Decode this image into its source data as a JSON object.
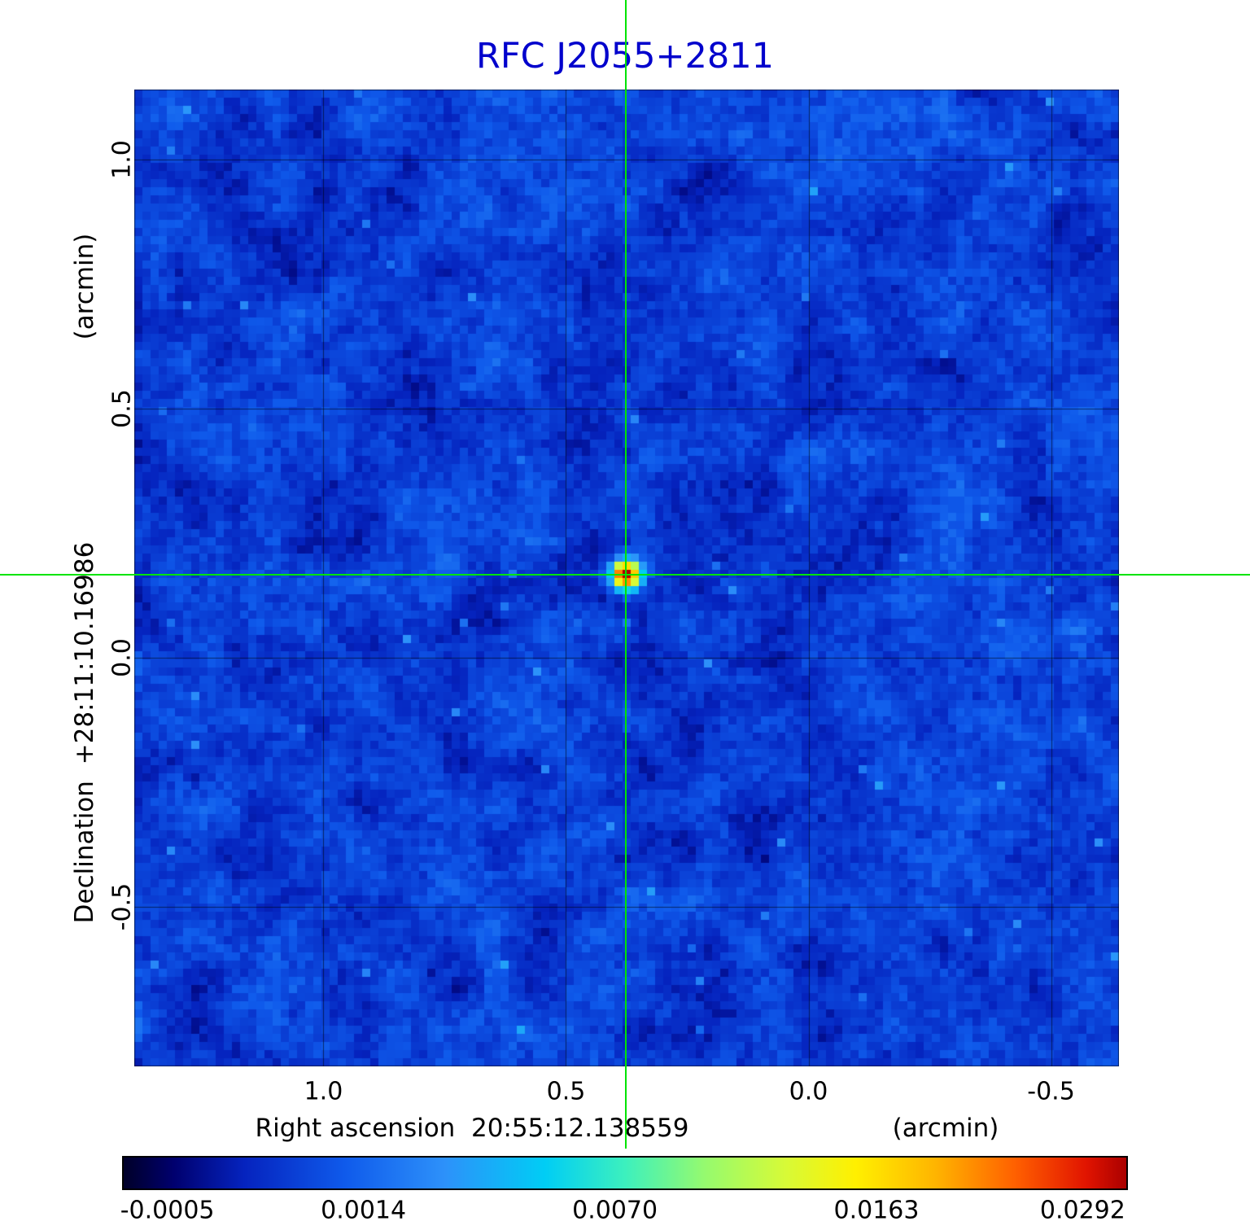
{
  "title": "RFC J2055+2811",
  "colors": {
    "title_blue": "#0000cc",
    "crosshair_green": "#00e400",
    "grid_line": "rgba(0,0,0,0.55)",
    "colorbar_border": "#000000"
  },
  "chart_data": {
    "type": "heatmap",
    "title": "RFC J2055+2811",
    "description": "Radio continuum map of source RFC J2055+2811: compact bright source on a blue noise background, marked by green crosshairs at the map center",
    "x_axis": {
      "label": "Right ascension  20:55:12.138559",
      "unit": "(arcmin)",
      "tick_labels": [
        "1.0",
        "0.5",
        "0.0",
        "-0.5"
      ],
      "tick_values": [
        1.0,
        0.5,
        0.0,
        -0.5
      ],
      "range": [
        1.39,
        -0.64
      ]
    },
    "y_axis": {
      "label": "Declination  +28:11:10.16986",
      "unit": "(arcmin)",
      "tick_labels": [
        "1.0",
        "0.5",
        "0.0",
        "-0.5"
      ],
      "tick_values": [
        1.0,
        0.5,
        0.0,
        -0.5
      ],
      "range": [
        -0.82,
        1.14
      ]
    },
    "source_marker": {
      "x_arcmin": 0.376,
      "y_arcmin": 0.166,
      "peak_value": 0.0292
    },
    "colorbar": {
      "orientation": "horizontal",
      "tick_labels": [
        "-0.0005",
        "0.0014",
        "0.0070",
        "0.0163",
        "0.0292"
      ],
      "tick_values": [
        -0.0005,
        0.0014,
        0.007,
        0.0163,
        0.0292
      ],
      "min": -0.0005,
      "max": 0.0292,
      "scale": "nonlinear",
      "colormap": "rainbow-jet"
    },
    "grid": true,
    "background_noise_level": 0.0014
  }
}
